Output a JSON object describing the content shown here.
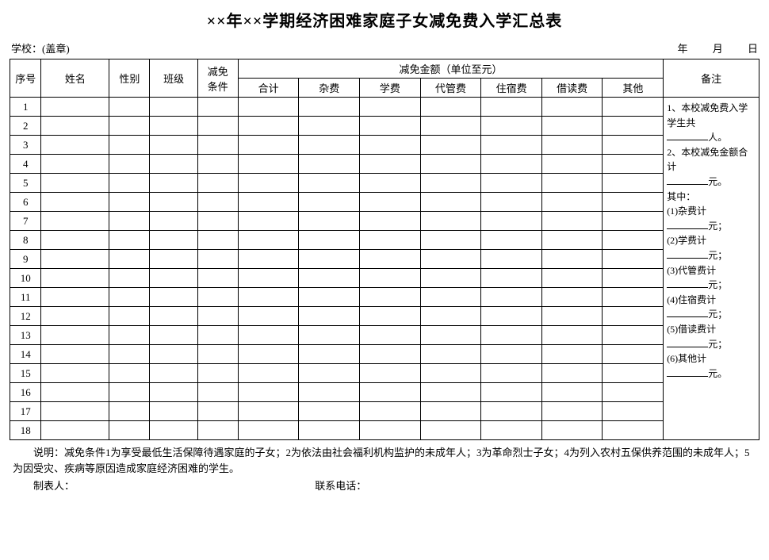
{
  "title": "××年××学期经济困难家庭子女减免费入学汇总表",
  "meta": {
    "school_label": "学校：(盖章)",
    "year_label": "年",
    "month_label": "月",
    "day_label": "日"
  },
  "headers": {
    "seq": "序号",
    "name": "姓名",
    "gender": "性别",
    "class": "班级",
    "condition": "减免\n条件",
    "amount_group": "减免金额（单位至元）",
    "amount_sub": [
      "合计",
      "杂费",
      "学费",
      "代管费",
      "住宿费",
      "借读费",
      "其他"
    ],
    "remark": "备注"
  },
  "row_count": 18,
  "remark_block": {
    "l1": "1、本校减免费入学学生共",
    "l1s": "人。",
    "l2": "2、本校减免金额合计",
    "l2s": "元。",
    "mid": "其中：",
    "items": [
      {
        "label": "(1)杂费计",
        "suffix": "元；"
      },
      {
        "label": "(2)学费计",
        "suffix": "元；"
      },
      {
        "label": "(3)代管费计",
        "suffix": "元；"
      },
      {
        "label": "(4)住宿费计",
        "suffix": "元；"
      },
      {
        "label": "(5)借读费计",
        "suffix": "元；"
      },
      {
        "label": "(6)其他计",
        "suffix": "元。"
      }
    ]
  },
  "notes": "说明：减免条件1为享受最低生活保障待遇家庭的子女；2为依法由社会福利机构监护的未成年人；3为革命烈士子女；4为列入农村五保供养范围的未成年人；5为因受灾、疾病等原因造成家庭经济困难的学生。",
  "footer": {
    "preparer": "制表人：",
    "contact": "联系电话："
  }
}
